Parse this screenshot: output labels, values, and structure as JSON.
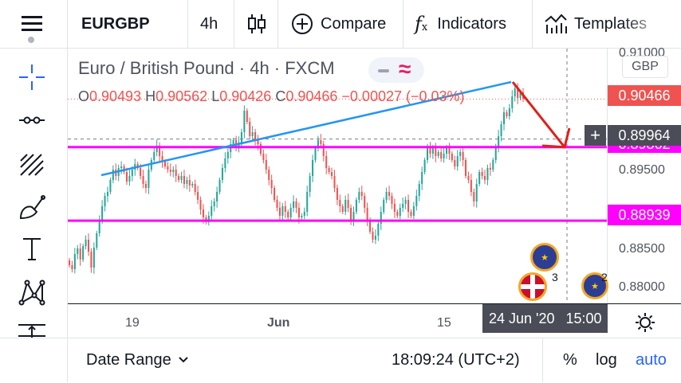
{
  "toolbar": {
    "symbol": "EURGBP",
    "interval": "4h",
    "compare_label": "Compare",
    "indicators_label": "Indicators",
    "templates_label": "Templates"
  },
  "legend": {
    "title": "Euro / British Pound · 4h · FXCM",
    "o_label": "O",
    "o_value": "0.90493",
    "h_label": "H",
    "h_value": "0.90562",
    "l_label": "L",
    "l_value": "0.90426",
    "c_label": "C",
    "c_value": "0.90466",
    "change": "−0.00027 (−0.03%)"
  },
  "price_axis": {
    "currency": "GBP",
    "ticks": [
      "0.91000",
      "0.89500",
      "0.88500",
      "0.88000"
    ],
    "last_price": "0.90466",
    "crosshair_price": "0.89964",
    "hidden_label": "0.89862",
    "level_price": "0.88939"
  },
  "time_axis": {
    "ticks": [
      "19",
      "Jun",
      "15"
    ],
    "crosshair_date": "24 Jun '20",
    "crosshair_time": "15:00"
  },
  "events": {
    "uk_count": "3",
    "eu_count": "2"
  },
  "bottom": {
    "date_range_label": "Date Range",
    "clock": "18:09:24 (UTC+2)",
    "percent_label": "%",
    "log_label": "log",
    "auto_label": "auto"
  },
  "colors": {
    "up": "#26a69a",
    "down": "#ef5350",
    "magenta": "#ff00ff",
    "trend": "#2196f3",
    "arrow": "#e0201b",
    "accent": "#2962ff"
  },
  "chart_data": {
    "type": "candlestick",
    "x_ticks": [
      "19",
      "Jun",
      "15"
    ],
    "ylim": [
      0.879,
      0.911
    ],
    "horizontal_levels": [
      0.89862,
      0.88939
    ],
    "last_price": 0.90466,
    "crosshair": {
      "price": 0.89964,
      "time": "24 Jun '20 15:00"
    },
    "closes": [
      0.8838,
      0.8833,
      0.8852,
      0.8859,
      0.8845,
      0.8862,
      0.887,
      0.8855,
      0.8835,
      0.886,
      0.8878,
      0.8895,
      0.8912,
      0.8925,
      0.893,
      0.8945,
      0.8958,
      0.895,
      0.896,
      0.8962,
      0.8955,
      0.8943,
      0.895,
      0.8958,
      0.8965,
      0.896,
      0.895,
      0.894,
      0.8935,
      0.8958,
      0.897,
      0.898,
      0.8988,
      0.8975,
      0.8968,
      0.8962,
      0.8958,
      0.8955,
      0.8958,
      0.895,
      0.8945,
      0.895,
      0.894,
      0.8945,
      0.8938,
      0.894,
      0.893,
      0.892,
      0.8908,
      0.8898,
      0.8892,
      0.89,
      0.8912,
      0.8918,
      0.893,
      0.8945,
      0.896,
      0.8972,
      0.898,
      0.899,
      0.8995,
      0.8985,
      0.8992,
      0.9005,
      0.9032,
      0.9018,
      0.9,
      0.9005,
      0.8995,
      0.899,
      0.8978,
      0.897,
      0.8958,
      0.8945,
      0.8935,
      0.892,
      0.891,
      0.89,
      0.8912,
      0.8905,
      0.8898,
      0.891,
      0.8918,
      0.891,
      0.8898,
      0.89,
      0.8905,
      0.893,
      0.895,
      0.897,
      0.8985,
      0.8995,
      0.899,
      0.8975,
      0.896,
      0.8955,
      0.895,
      0.8935,
      0.892,
      0.8912,
      0.8905,
      0.892,
      0.891,
      0.8895,
      0.8905,
      0.892,
      0.893,
      0.8925,
      0.891,
      0.8895,
      0.888,
      0.887,
      0.8875,
      0.889,
      0.8905,
      0.892,
      0.893,
      0.8925,
      0.8915,
      0.8905,
      0.89,
      0.891,
      0.8915,
      0.892,
      0.8905,
      0.89,
      0.8912,
      0.8925,
      0.894,
      0.8955,
      0.897,
      0.8985,
      0.8978,
      0.8985,
      0.8975,
      0.898,
      0.8972,
      0.8978,
      0.8985,
      0.8978,
      0.897,
      0.8962,
      0.8975,
      0.898,
      0.897,
      0.895,
      0.8945,
      0.893,
      0.8918,
      0.894,
      0.8955,
      0.895,
      0.8945,
      0.896,
      0.8958,
      0.897,
      0.8985,
      0.9,
      0.9015,
      0.903,
      0.9025,
      0.9035,
      0.905,
      0.906,
      0.9048,
      0.9055,
      0.9047
    ]
  }
}
